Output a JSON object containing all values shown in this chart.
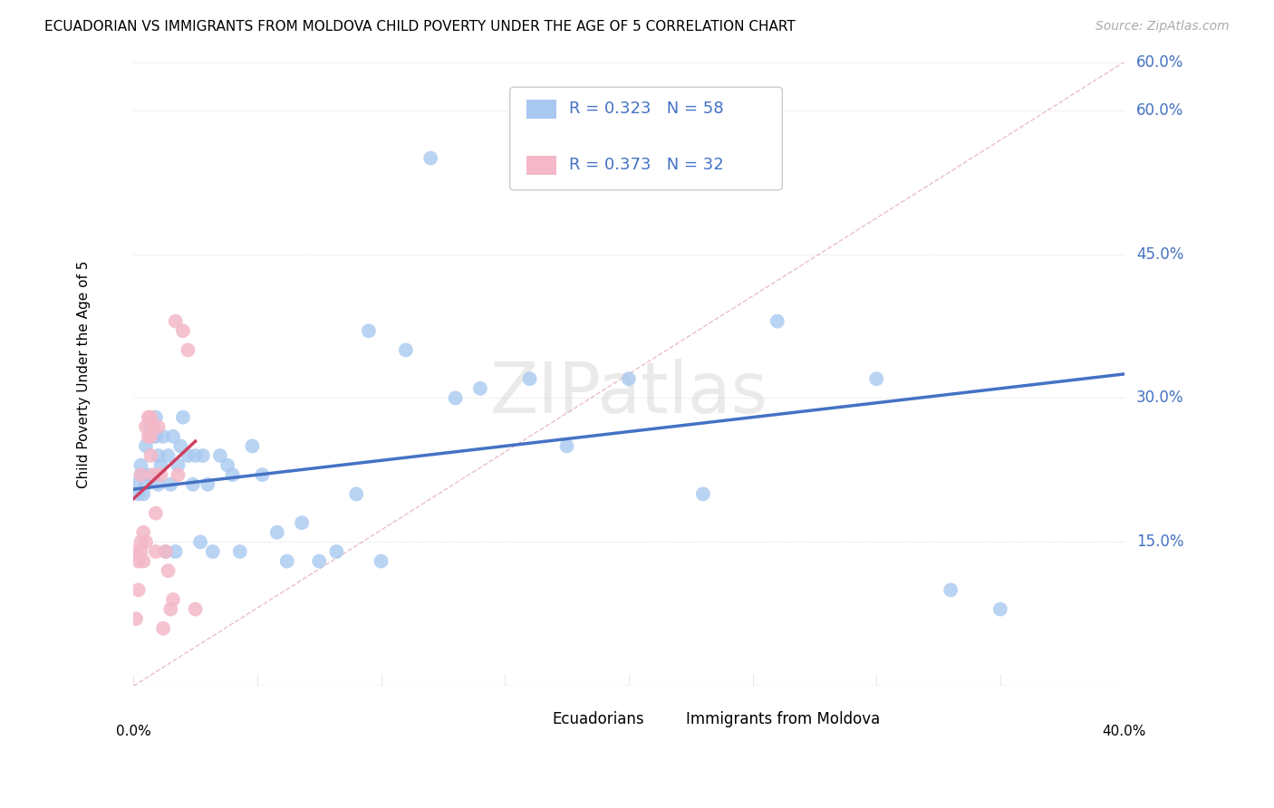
{
  "title": "ECUADORIAN VS IMMIGRANTS FROM MOLDOVA CHILD POVERTY UNDER THE AGE OF 5 CORRELATION CHART",
  "source": "Source: ZipAtlas.com",
  "ylabel": "Child Poverty Under the Age of 5",
  "xlim": [
    0.0,
    0.4
  ],
  "ylim": [
    0.0,
    0.65
  ],
  "yticks": [
    0.15,
    0.3,
    0.45,
    0.6
  ],
  "ytick_labels": [
    "15.0%",
    "30.0%",
    "45.0%",
    "60.0%"
  ],
  "xtick_positions": [
    0.0,
    0.05,
    0.1,
    0.15,
    0.2,
    0.25,
    0.3,
    0.35,
    0.4
  ],
  "background_color": "#ffffff",
  "grid_color": "#dddddd",
  "blue_color": "#a8c8f0",
  "pink_color": "#f4b8c8",
  "blue_line_color": "#4472c4",
  "pink_line_color": "#d04060",
  "diagonal_color": "#e8b8c0",
  "r_blue": 0.323,
  "n_blue": 58,
  "r_pink": 0.373,
  "n_pink": 32,
  "legend_label_blue": "Ecuadorians",
  "legend_label_pink": "Immigrants from Moldova",
  "ecuadorian_x": [
    0.001,
    0.002,
    0.003,
    0.003,
    0.004,
    0.005,
    0.005,
    0.006,
    0.007,
    0.007,
    0.008,
    0.009,
    0.009,
    0.01,
    0.01,
    0.011,
    0.012,
    0.013,
    0.014,
    0.015,
    0.016,
    0.017,
    0.018,
    0.019,
    0.02,
    0.022,
    0.024,
    0.025,
    0.027,
    0.028,
    0.03,
    0.032,
    0.035,
    0.038,
    0.04,
    0.043,
    0.048,
    0.052,
    0.058,
    0.062,
    0.068,
    0.075,
    0.082,
    0.09,
    0.095,
    0.1,
    0.11,
    0.12,
    0.13,
    0.14,
    0.16,
    0.175,
    0.2,
    0.23,
    0.26,
    0.3,
    0.33,
    0.35
  ],
  "ecuadorian_y": [
    0.21,
    0.2,
    0.22,
    0.23,
    0.2,
    0.21,
    0.25,
    0.22,
    0.27,
    0.27,
    0.26,
    0.28,
    0.26,
    0.21,
    0.24,
    0.23,
    0.26,
    0.14,
    0.24,
    0.21,
    0.26,
    0.14,
    0.23,
    0.25,
    0.28,
    0.24,
    0.21,
    0.24,
    0.15,
    0.24,
    0.21,
    0.14,
    0.24,
    0.23,
    0.22,
    0.14,
    0.25,
    0.22,
    0.16,
    0.13,
    0.17,
    0.13,
    0.14,
    0.2,
    0.37,
    0.13,
    0.35,
    0.55,
    0.3,
    0.31,
    0.32,
    0.25,
    0.32,
    0.2,
    0.38,
    0.32,
    0.1,
    0.08
  ],
  "moldova_x": [
    0.001,
    0.001,
    0.002,
    0.002,
    0.003,
    0.003,
    0.003,
    0.004,
    0.004,
    0.005,
    0.005,
    0.006,
    0.006,
    0.007,
    0.007,
    0.007,
    0.008,
    0.008,
    0.009,
    0.009,
    0.01,
    0.011,
    0.012,
    0.013,
    0.014,
    0.015,
    0.016,
    0.017,
    0.018,
    0.02,
    0.022,
    0.025
  ],
  "moldova_y": [
    0.07,
    0.14,
    0.1,
    0.13,
    0.14,
    0.15,
    0.22,
    0.13,
    0.16,
    0.15,
    0.27,
    0.26,
    0.28,
    0.24,
    0.26,
    0.28,
    0.22,
    0.27,
    0.14,
    0.18,
    0.27,
    0.22,
    0.06,
    0.14,
    0.12,
    0.08,
    0.09,
    0.38,
    0.22,
    0.37,
    0.35,
    0.08
  ],
  "blue_trend_x0": 0.0,
  "blue_trend_y0": 0.205,
  "blue_trend_x1": 0.4,
  "blue_trend_y1": 0.325,
  "pink_trend_x0": 0.0,
  "pink_trend_y0": 0.195,
  "pink_trend_x1": 0.025,
  "pink_trend_y1": 0.255
}
